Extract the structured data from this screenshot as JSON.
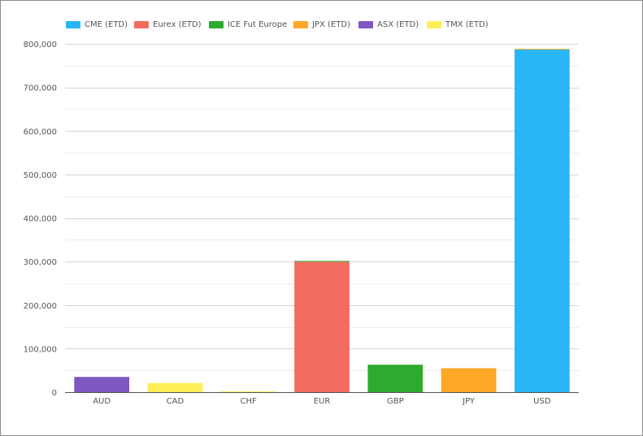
{
  "chart_data": {
    "type": "bar",
    "stacked": true,
    "categories": [
      "AUD",
      "CAD",
      "CHF",
      "EUR",
      "GBP",
      "JPY",
      "USD"
    ],
    "series": [
      {
        "name": "CME (ETD)",
        "color": "#29b6f6",
        "values": [
          0,
          0,
          0,
          0,
          0,
          0,
          787000
        ]
      },
      {
        "name": "Eurex (ETD)",
        "color": "#f26c5f",
        "values": [
          0,
          0,
          0,
          300000,
          0,
          0,
          0
        ]
      },
      {
        "name": "ICE Fut Europe",
        "color": "#2eab2e",
        "values": [
          0,
          0,
          0,
          1500,
          63000,
          0,
          0
        ]
      },
      {
        "name": "JPX (ETD)",
        "color": "#ffa726",
        "values": [
          0,
          0,
          0,
          0,
          0,
          55000,
          1500
        ]
      },
      {
        "name": "ASX (ETD)",
        "color": "#7e57c2",
        "values": [
          35000,
          0,
          0,
          0,
          0,
          0,
          0
        ]
      },
      {
        "name": "TMX (ETD)",
        "color": "#ffee58",
        "values": [
          0,
          21000,
          2000,
          0,
          0,
          0,
          0
        ]
      }
    ],
    "yticks": [
      "0",
      "100,000",
      "200,000",
      "300,000",
      "400,000",
      "500,000",
      "600,000",
      "700,000",
      "800,000"
    ],
    "ylim": [
      0,
      800000
    ],
    "grid": true,
    "legend_position": "top-left",
    "title": "",
    "xlabel": "",
    "ylabel": ""
  }
}
